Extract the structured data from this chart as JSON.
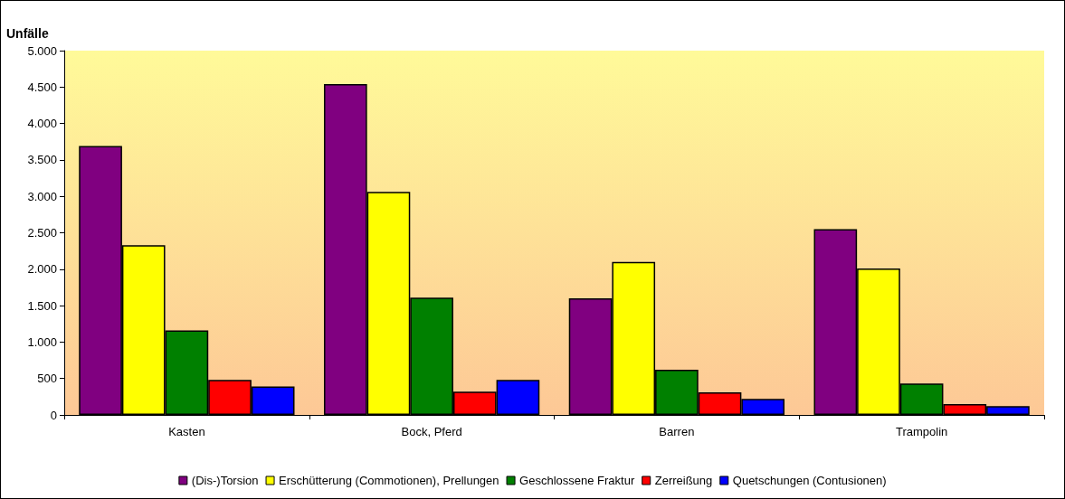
{
  "chart_data": {
    "type": "bar",
    "ylabel": "Unfälle",
    "categories": [
      "Kasten",
      "Bock, Pferd",
      "Barren",
      "Trampolin"
    ],
    "series": [
      {
        "name": "(Dis-)Torsion",
        "color": "#800080",
        "values": [
          3690,
          4540,
          1600,
          2550
        ]
      },
      {
        "name": "Erschütterung (Commotionen), Prellungen",
        "color": "#ffff00",
        "values": [
          2330,
          3060,
          2100,
          2010
        ]
      },
      {
        "name": "Geschlossene Fraktur",
        "color": "#008000",
        "values": [
          1160,
          1610,
          620,
          430
        ]
      },
      {
        "name": "Zerreißung",
        "color": "#ff0000",
        "values": [
          480,
          320,
          310,
          150
        ]
      },
      {
        "name": "Quetschungen (Contusionen)",
        "color": "#0000ff",
        "values": [
          390,
          480,
          220,
          120
        ]
      }
    ],
    "ylim": [
      0,
      5000
    ],
    "yticks": [
      0,
      500,
      {
        "value": 1000,
        "label": "1.000"
      },
      {
        "value": 1500,
        "label": "1.500"
      },
      {
        "value": 2000,
        "label": "2.000"
      },
      {
        "value": 2500,
        "label": "2.500"
      },
      {
        "value": 3000,
        "label": "3.000"
      },
      {
        "value": 3500,
        "label": "3.500"
      },
      {
        "value": 4000,
        "label": "4.000"
      },
      {
        "value": 4500,
        "label": "4.500"
      },
      {
        "value": 5000,
        "label": "5.000"
      }
    ],
    "grid": false,
    "legend": "bottom"
  }
}
